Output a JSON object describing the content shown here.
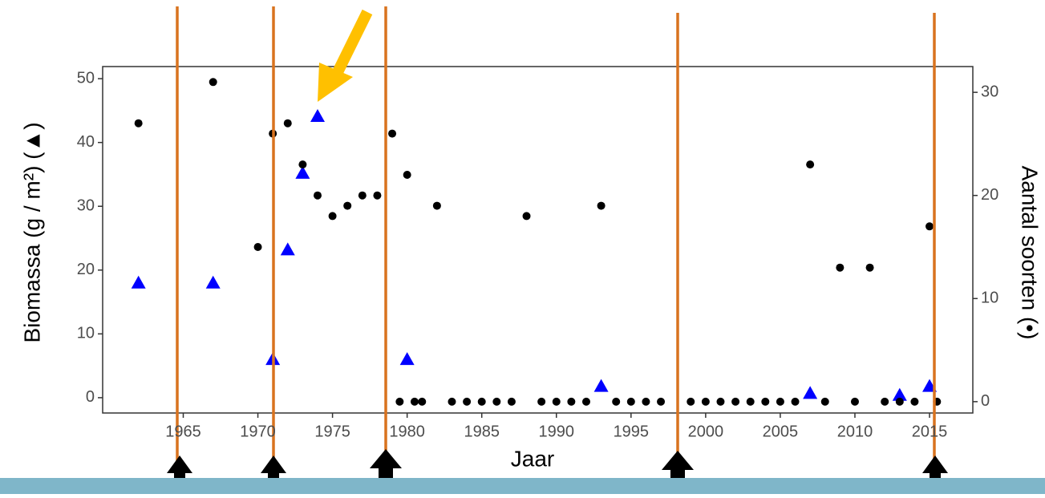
{
  "chart_data": {
    "type": "scatter",
    "x_label": "Jaar",
    "y_label": "Biomassa (g / m²) (▲)",
    "y2_label": "Aantal soorten (•)",
    "xlim": [
      1959.6,
      2017.9
    ],
    "xticks": [
      1965,
      1970,
      1975,
      1980,
      1985,
      1990,
      1995,
      2000,
      2005,
      2010,
      2015
    ],
    "ylim": [
      -2.4,
      51.9
    ],
    "yticks": [
      0,
      10,
      20,
      30,
      40,
      50
    ],
    "y2lim": [
      -1.1,
      32.5
    ],
    "y2ticks": [
      0,
      10,
      20,
      30
    ],
    "series": [
      {
        "color": "#0000ff",
        "marker": "triangle",
        "x": [
          1962,
          1967,
          1971,
          1972,
          1973,
          1974,
          1980,
          1993,
          2007,
          2013,
          2015
        ],
        "values": [
          18,
          18,
          6,
          23.2,
          35.2,
          44.1,
          6,
          1.8,
          0.7,
          0.4,
          1.8
        ]
      },
      {
        "color": "#000000",
        "marker": "circle",
        "axis": "y2",
        "x": [
          1962,
          1967,
          1970,
          1971,
          1972,
          1973,
          1974,
          1975,
          1976,
          1977,
          1978,
          1979,
          1980,
          1982,
          1988,
          1993,
          2007,
          2009,
          2011,
          2015,
          1979.5,
          1980.5,
          1981,
          1983,
          1984,
          1985,
          1986,
          1987,
          1989,
          1990,
          1991,
          1992,
          1994,
          1995,
          1996,
          1997,
          1999,
          2000,
          2001,
          2002,
          2003,
          2004,
          2005,
          2006,
          2008,
          2010,
          2012,
          2013,
          2014,
          2015.5
        ],
        "values": [
          27,
          31,
          15,
          26,
          27,
          23,
          20,
          18,
          19,
          20,
          20,
          26,
          22,
          19,
          18,
          19,
          23,
          13,
          13,
          17,
          0,
          0,
          0,
          0,
          0,
          0,
          0,
          0,
          0,
          0,
          0,
          0,
          0,
          0,
          0,
          0,
          0,
          0,
          0,
          0,
          0,
          0,
          0,
          0,
          0,
          0,
          0,
          0,
          0,
          0
        ]
      }
    ]
  }
}
